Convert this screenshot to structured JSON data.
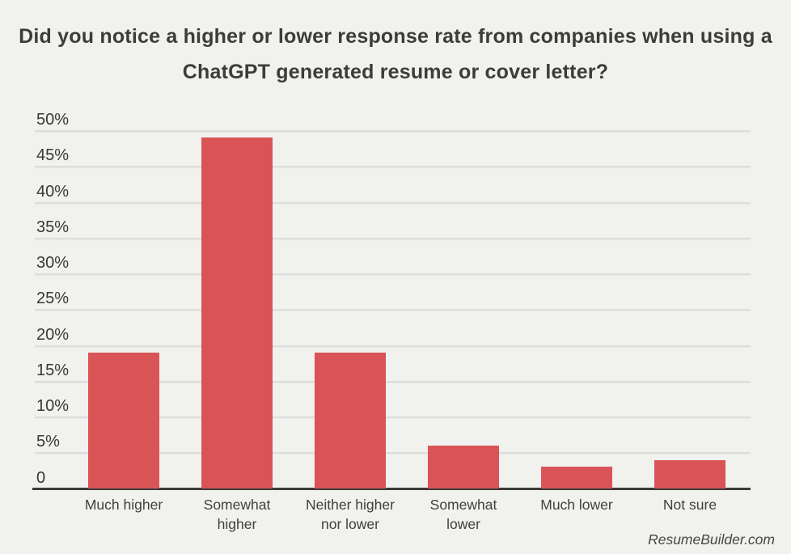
{
  "page": {
    "background_color": "#f1f1ee"
  },
  "header": {
    "title": "Did you notice a higher or lower response rate from companies when using a ChatGPT generated resume or cover letter?"
  },
  "footer": {
    "source": "ResumeBuilder.com"
  },
  "chart_data": {
    "type": "bar",
    "title": "Did you notice a higher or lower response rate from companies when using a ChatGPT generated resume or cover letter?",
    "categories": [
      "Much higher",
      "Somewhat higher",
      "Neither higher nor lower",
      "Somewhat lower",
      "Much lower",
      "Not sure"
    ],
    "values": [
      19,
      49,
      19,
      6,
      3,
      4
    ],
    "unit": "%",
    "xlabel": "",
    "ylabel": "",
    "ylim": [
      0,
      50
    ],
    "y_tick_step": 5,
    "y_tick_labels": [
      "0",
      "5%",
      "10%",
      "15%",
      "20%",
      "25%",
      "30%",
      "35%",
      "40%",
      "45%",
      "50%"
    ],
    "grid": true,
    "legend": "none",
    "bar_color": "#d95457",
    "gridline_color": "#dddddb",
    "axis_color": "#3b3b3b",
    "source": "ResumeBuilder.com"
  }
}
